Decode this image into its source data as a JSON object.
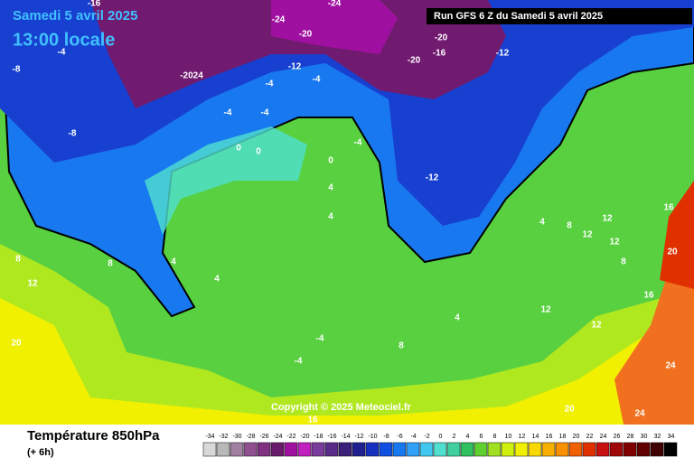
{
  "header": {
    "date": "Samedi 5 avril 2025",
    "time": "13:00 locale",
    "run": "Run GFS 6 Z du Samedi 5 avril 2025"
  },
  "copyright": "Copyright © 2025 Meteociel.fr",
  "footer": {
    "title": "Température 850hPa",
    "step": "(+ 6h)"
  },
  "scale": {
    "values": [
      -34,
      -32,
      -30,
      -28,
      -26,
      -24,
      -22,
      -20,
      -18,
      -16,
      -14,
      -12,
      -10,
      -8,
      -6,
      -4,
      -2,
      0,
      2,
      4,
      6,
      8,
      10,
      12,
      14,
      16,
      18,
      20,
      22,
      24,
      26,
      28,
      30,
      32,
      34
    ],
    "colors": [
      "#d8d8d8",
      "#b8b8b8",
      "#a080a0",
      "#905090",
      "#803080",
      "#6a1a6a",
      "#a010a0",
      "#c020c0",
      "#7a3c9a",
      "#5a2c8a",
      "#3a2078",
      "#202090",
      "#1830c0",
      "#1050e0",
      "#1878f0",
      "#30a0f8",
      "#40c8f0",
      "#50e0d0",
      "#40d0a0",
      "#30c060",
      "#60d030",
      "#a0e020",
      "#d0f010",
      "#f0f000",
      "#f8d800",
      "#f8b000",
      "#f89000",
      "#f06000",
      "#e03000",
      "#c81010",
      "#a00808",
      "#800000",
      "#600000",
      "#400000",
      "#000000"
    ]
  },
  "map_labels": [
    "-16",
    "-24",
    "-20",
    "-24",
    "-20",
    "-20",
    "-16",
    "-12",
    "-4",
    "-2024",
    "-12",
    "-8",
    "-4",
    "-4",
    "-4",
    "-4",
    "-8",
    "0",
    "0",
    "0",
    "-4",
    "-12",
    "4",
    "4",
    "8",
    "4",
    "4",
    "4",
    "8",
    "12",
    "12",
    "12",
    "8",
    "12",
    "16",
    "20",
    "24",
    "24",
    "20",
    "20",
    "16",
    "12",
    "8",
    "4",
    "-4",
    "-4",
    "8",
    "12",
    "16"
  ]
}
